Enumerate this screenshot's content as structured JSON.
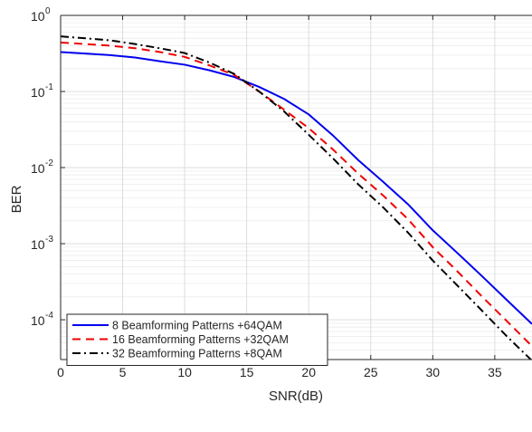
{
  "chart_data": {
    "type": "line",
    "title": "",
    "xlabel": "SNR(dB)",
    "ylabel": "BER",
    "xlim": [
      0,
      38
    ],
    "ylim": [
      3e-05,
      1
    ],
    "yscale": "log",
    "grid": true,
    "minor_grid": true,
    "legend_position": "bottom-left",
    "x_ticks": [
      0,
      5,
      10,
      15,
      20,
      25,
      30,
      35
    ],
    "x_tick_labels": [
      "0",
      "5",
      "10",
      "15",
      "20",
      "25",
      "30",
      "35"
    ],
    "y_ticks": [
      0.0001,
      0.001,
      0.01,
      0.1,
      1
    ],
    "y_tick_labels": [
      {
        "base": "10",
        "exp": "-4"
      },
      {
        "base": "10",
        "exp": "-3"
      },
      {
        "base": "10",
        "exp": "-2"
      },
      {
        "base": "10",
        "exp": "-1"
      },
      {
        "base": "10",
        "exp": "0"
      }
    ],
    "series": [
      {
        "name": "8 Beamforming Patterns +64QAM",
        "color": "#0000ee",
        "dash": "solid",
        "x": [
          0,
          2,
          4,
          6,
          8,
          10,
          12,
          14,
          16,
          18,
          20,
          22,
          24,
          26,
          28,
          30,
          32,
          34,
          36,
          38
        ],
        "y": [
          0.33,
          0.315,
          0.3,
          0.28,
          0.25,
          0.225,
          0.19,
          0.155,
          0.115,
          0.08,
          0.05,
          0.026,
          0.0125,
          0.0065,
          0.0033,
          0.0015,
          0.00075,
          0.00037,
          0.00018,
          8.8e-05
        ]
      },
      {
        "name": "16 Beamforming Patterns +32QAM",
        "color": "#ee0000",
        "dash": "dashed",
        "x": [
          0,
          2,
          4,
          6,
          8,
          10,
          12,
          14,
          16,
          18,
          20,
          22,
          24,
          26,
          28,
          30,
          32,
          34,
          36,
          38
        ],
        "y": [
          0.44,
          0.42,
          0.4,
          0.37,
          0.33,
          0.285,
          0.22,
          0.165,
          0.1,
          0.058,
          0.033,
          0.017,
          0.0083,
          0.0043,
          0.0021,
          0.0009,
          0.00043,
          0.0002,
          9.5e-05,
          4.5e-05
        ]
      },
      {
        "name": "32 Beamforming Patterns +8QAM",
        "color": "#000000",
        "dash": "dashdot",
        "x": [
          0,
          2,
          4,
          6,
          8,
          10,
          12,
          14,
          16,
          18,
          20,
          22,
          24,
          26,
          28,
          30,
          32,
          34,
          36,
          38
        ],
        "y": [
          0.53,
          0.5,
          0.47,
          0.42,
          0.37,
          0.32,
          0.24,
          0.17,
          0.1,
          0.055,
          0.027,
          0.013,
          0.006,
          0.003,
          0.0014,
          0.0006,
          0.00028,
          0.00013,
          6e-05,
          2.9e-05
        ]
      }
    ]
  }
}
